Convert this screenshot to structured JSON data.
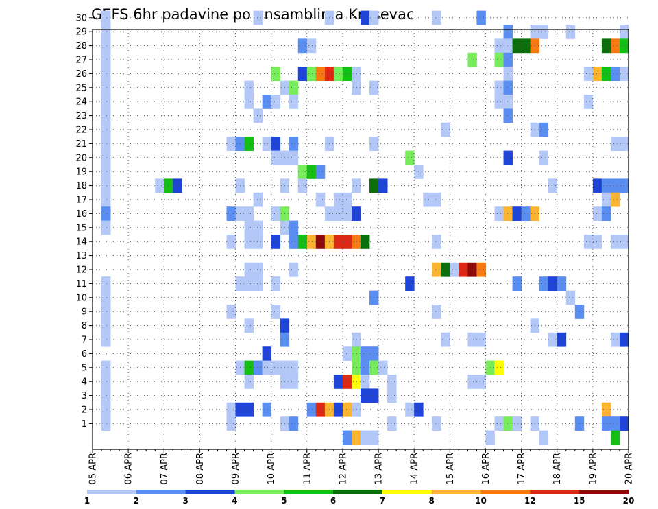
{
  "chart_data": {
    "type": "heatmap",
    "title": "GEFS 6hr padavine po ansamblima Krusevac",
    "xlabel": "",
    "ylabel": "",
    "x_ticks": [
      "05 APR",
      "06 APR",
      "07 APR",
      "08 APR",
      "09 APR",
      "10 APR",
      "11 APR",
      "12 APR",
      "13 APR",
      "14 APR",
      "15 APR",
      "16 APR",
      "17 APR",
      "18 APR",
      "19 APR",
      "20 APR"
    ],
    "x_interval": "6 hr",
    "x_range": [
      "05 APR 00Z",
      "20 APR 00Z"
    ],
    "y_ticks": [
      1,
      2,
      3,
      4,
      5,
      6,
      7,
      8,
      9,
      10,
      11,
      12,
      13,
      14,
      15,
      16,
      17,
      18,
      19,
      20,
      21,
      22,
      23,
      24,
      25,
      26,
      27,
      28,
      29,
      30
    ],
    "ylabel_meaning": "ensemble member",
    "grid": true,
    "legend_position": "bottom",
    "color_levels": [
      1,
      2,
      3,
      4,
      5,
      6,
      7,
      8,
      10,
      12,
      15,
      20
    ],
    "colors": [
      "#b4c8f8",
      "#5a8ef0",
      "#1f45d8",
      "#78ec5a",
      "#14be14",
      "#0a6e0a",
      "#ffff00",
      "#fab432",
      "#f57a14",
      "#dc2814",
      "#8c0a0a"
    ],
    "cells": [
      {
        "member": 30,
        "x": [
          "05 APR 06Z",
          "09 APR 12Z",
          "11 APR 12Z",
          "12 APR 12Z",
          "12 APR 18Z",
          "14 APR 12Z",
          "15 APR 18Z"
        ],
        "level": [
          1,
          1,
          1,
          3,
          1,
          1,
          2
        ]
      },
      {
        "member": 29,
        "x": [
          "05 APR 06Z",
          "16 APR 12Z",
          "17 APR 06Z",
          "17 APR 12Z",
          "18 APR 06Z",
          "19 APR 18Z"
        ],
        "level": [
          1,
          2,
          1,
          1,
          1,
          1
        ]
      },
      {
        "member": 28,
        "x": [
          "05 APR 06Z",
          "10 APR 18Z",
          "11 APR 00Z",
          "16 APR 06Z",
          "16 APR 12Z",
          "16 APR 18Z",
          "17 APR 00Z",
          "17 APR 06Z",
          "19 APR 06Z",
          "19 APR 12Z",
          "19 APR 18Z"
        ],
        "level": [
          1,
          2,
          1,
          1,
          1,
          6,
          6,
          9,
          6,
          9,
          5
        ]
      },
      {
        "member": 27,
        "x": [
          "05 APR 06Z",
          "15 APR 12Z",
          "16 APR 06Z",
          "16 APR 12Z"
        ],
        "level": [
          1,
          4,
          4,
          2
        ]
      },
      {
        "member": 26,
        "x": [
          "05 APR 06Z",
          "10 APR 00Z",
          "10 APR 18Z",
          "11 APR 00Z",
          "11 APR 06Z",
          "11 APR 12Z",
          "11 APR 18Z",
          "12 APR 00Z",
          "12 APR 06Z",
          "16 APR 12Z",
          "18 APR 18Z",
          "19 APR 00Z",
          "19 APR 06Z",
          "19 APR 12Z",
          "19 APR 18Z"
        ],
        "level": [
          1,
          4,
          3,
          4,
          9,
          10,
          4,
          5,
          1,
          1,
          1,
          8,
          5,
          2,
          1
        ]
      },
      {
        "member": 25,
        "x": [
          "05 APR 06Z",
          "09 APR 06Z",
          "10 APR 06Z",
          "10 APR 12Z",
          "12 APR 06Z",
          "12 APR 18Z",
          "16 APR 06Z",
          "16 APR 12Z"
        ],
        "level": [
          1,
          1,
          1,
          4,
          1,
          1,
          1,
          2
        ]
      },
      {
        "member": 24,
        "x": [
          "05 APR 06Z",
          "09 APR 06Z",
          "09 APR 18Z",
          "10 APR 00Z",
          "10 APR 12Z",
          "16 APR 06Z",
          "16 APR 12Z",
          "18 APR 18Z"
        ],
        "level": [
          1,
          1,
          2,
          1,
          1,
          1,
          1,
          1
        ]
      },
      {
        "member": 23,
        "x": [
          "05 APR 06Z",
          "09 APR 12Z",
          "16 APR 12Z"
        ],
        "level": [
          1,
          1,
          2
        ]
      },
      {
        "member": 22,
        "x": [
          "05 APR 06Z",
          "14 APR 18Z",
          "17 APR 06Z",
          "17 APR 12Z"
        ],
        "level": [
          1,
          1,
          1,
          2
        ]
      },
      {
        "member": 21,
        "x": [
          "05 APR 06Z",
          "08 APR 18Z",
          "09 APR 00Z",
          "09 APR 06Z",
          "09 APR 18Z",
          "10 APR 00Z",
          "10 APR 12Z",
          "11 APR 12Z",
          "12 APR 18Z",
          "19 APR 12Z",
          "19 APR 18Z"
        ],
        "level": [
          1,
          1,
          2,
          5,
          1,
          3,
          2,
          1,
          1,
          1,
          1
        ]
      },
      {
        "member": 20,
        "x": [
          "05 APR 06Z",
          "10 APR 00Z",
          "10 APR 06Z",
          "10 APR 12Z",
          "13 APR 18Z",
          "16 APR 12Z",
          "17 APR 12Z"
        ],
        "level": [
          1,
          1,
          1,
          1,
          4,
          3,
          1
        ]
      },
      {
        "member": 19,
        "x": [
          "05 APR 06Z",
          "10 APR 18Z",
          "11 APR 00Z",
          "11 APR 06Z",
          "14 APR 00Z"
        ],
        "level": [
          1,
          4,
          5,
          2,
          1
        ]
      },
      {
        "member": 18,
        "x": [
          "05 APR 06Z",
          "06 APR 18Z",
          "07 APR 00Z",
          "07 APR 06Z",
          "09 APR 00Z",
          "10 APR 06Z",
          "10 APR 18Z",
          "12 APR 06Z",
          "12 APR 18Z",
          "13 APR 00Z",
          "17 APR 18Z",
          "19 APR 00Z",
          "19 APR 06Z",
          "19 APR 12Z",
          "19 APR 18Z"
        ],
        "level": [
          1,
          1,
          5,
          3,
          1,
          1,
          1,
          1,
          6,
          3,
          1,
          3,
          2,
          2,
          2
        ]
      },
      {
        "member": 17,
        "x": [
          "05 APR 06Z",
          "09 APR 12Z",
          "11 APR 06Z",
          "11 APR 18Z",
          "12 APR 00Z",
          "14 APR 06Z",
          "14 APR 12Z",
          "19 APR 06Z",
          "19 APR 12Z"
        ],
        "level": [
          1,
          1,
          1,
          1,
          1,
          1,
          1,
          1,
          8
        ]
      },
      {
        "member": 16,
        "x": [
          "05 APR 06Z",
          "08 APR 18Z",
          "09 APR 00Z",
          "09 APR 06Z",
          "10 APR 00Z",
          "10 APR 06Z",
          "11 APR 12Z",
          "11 APR 18Z",
          "12 APR 00Z",
          "12 APR 06Z",
          "16 APR 06Z",
          "16 APR 12Z",
          "16 APR 18Z",
          "17 APR 00Z",
          "17 APR 06Z",
          "19 APR 00Z",
          "19 APR 06Z"
        ],
        "level": [
          2,
          2,
          1,
          1,
          1,
          4,
          1,
          1,
          1,
          3,
          1,
          8,
          3,
          2,
          8,
          1,
          2
        ]
      },
      {
        "member": 15,
        "x": [
          "05 APR 06Z",
          "09 APR 06Z",
          "09 APR 12Z",
          "10 APR 06Z",
          "10 APR 12Z"
        ],
        "level": [
          1,
          1,
          1,
          1,
          2
        ]
      },
      {
        "member": 14,
        "x": [
          "08 APR 18Z",
          "09 APR 06Z",
          "09 APR 12Z",
          "10 APR 00Z",
          "10 APR 12Z",
          "10 APR 18Z",
          "11 APR 00Z",
          "11 APR 06Z",
          "11 APR 12Z",
          "11 APR 18Z",
          "12 APR 00Z",
          "12 APR 06Z",
          "12 APR 12Z",
          "14 APR 12Z",
          "18 APR 18Z",
          "19 APR 00Z",
          "19 APR 12Z",
          "19 APR 18Z"
        ],
        "level": [
          1,
          1,
          1,
          3,
          2,
          5,
          8,
          11,
          8,
          10,
          10,
          9,
          6,
          1,
          1,
          1,
          1,
          1
        ]
      },
      {
        "member": 12,
        "x": [
          "09 APR 06Z",
          "09 APR 12Z",
          "10 APR 12Z",
          "14 APR 12Z",
          "14 APR 18Z",
          "15 APR 00Z",
          "15 APR 06Z",
          "15 APR 12Z",
          "15 APR 18Z"
        ],
        "level": [
          1,
          1,
          1,
          8,
          6,
          1,
          10,
          11,
          9
        ]
      },
      {
        "member": 11,
        "x": [
          "05 APR 06Z",
          "09 APR 00Z",
          "09 APR 06Z",
          "09 APR 12Z",
          "10 APR 00Z",
          "13 APR 18Z",
          "16 APR 18Z",
          "17 APR 12Z",
          "17 APR 18Z",
          "18 APR 00Z"
        ],
        "level": [
          1,
          1,
          1,
          1,
          1,
          3,
          2,
          2,
          3,
          2
        ]
      },
      {
        "member": 10,
        "x": [
          "05 APR 06Z",
          "12 APR 18Z",
          "18 APR 06Z"
        ],
        "level": [
          1,
          2,
          1
        ]
      },
      {
        "member": 9,
        "x": [
          "05 APR 06Z",
          "08 APR 18Z",
          "10 APR 00Z",
          "14 APR 12Z",
          "18 APR 12Z"
        ],
        "level": [
          1,
          1,
          1,
          1,
          2
        ]
      },
      {
        "member": 8,
        "x": [
          "05 APR 06Z",
          "09 APR 06Z",
          "10 APR 06Z",
          "17 APR 06Z"
        ],
        "level": [
          1,
          1,
          3,
          1
        ]
      },
      {
        "member": 7,
        "x": [
          "05 APR 06Z",
          "10 APR 06Z",
          "12 APR 06Z",
          "14 APR 18Z",
          "15 APR 12Z",
          "15 APR 18Z",
          "17 APR 18Z",
          "18 APR 00Z",
          "19 APR 12Z",
          "19 APR 18Z"
        ],
        "level": [
          1,
          2,
          1,
          1,
          1,
          1,
          1,
          3,
          1,
          3
        ]
      },
      {
        "member": 6,
        "x": [
          "09 APR 18Z",
          "12 APR 00Z",
          "12 APR 06Z",
          "12 APR 12Z",
          "12 APR 18Z"
        ],
        "level": [
          3,
          1,
          4,
          2,
          2
        ]
      },
      {
        "member": 5,
        "x": [
          "05 APR 06Z",
          "09 APR 00Z",
          "09 APR 06Z",
          "09 APR 12Z",
          "09 APR 18Z",
          "10 APR 00Z",
          "10 APR 06Z",
          "10 APR 12Z",
          "12 APR 06Z",
          "12 APR 12Z",
          "12 APR 18Z",
          "13 APR 00Z",
          "16 APR 00Z",
          "16 APR 06Z"
        ],
        "level": [
          1,
          1,
          5,
          2,
          1,
          1,
          1,
          1,
          4,
          2,
          4,
          1,
          4,
          7
        ]
      },
      {
        "member": 4,
        "x": [
          "05 APR 06Z",
          "09 APR 06Z",
          "10 APR 06Z",
          "10 APR 12Z",
          "11 APR 18Z",
          "12 APR 00Z",
          "12 APR 06Z",
          "12 APR 12Z",
          "13 APR 06Z",
          "15 APR 12Z",
          "15 APR 18Z"
        ],
        "level": [
          1,
          1,
          1,
          1,
          3,
          10,
          7,
          1,
          1,
          1,
          1
        ]
      },
      {
        "member": 3,
        "x": [
          "05 APR 06Z",
          "12 APR 12Z",
          "12 APR 18Z",
          "13 APR 06Z"
        ],
        "level": [
          1,
          3,
          3,
          1
        ]
      },
      {
        "member": 2,
        "x": [
          "05 APR 06Z",
          "08 APR 18Z",
          "09 APR 00Z",
          "09 APR 06Z",
          "09 APR 18Z",
          "11 APR 00Z",
          "11 APR 06Z",
          "11 APR 12Z",
          "11 APR 18Z",
          "12 APR 00Z",
          "12 APR 06Z",
          "13 APR 18Z",
          "14 APR 00Z",
          "19 APR 06Z"
        ],
        "level": [
          1,
          1,
          3,
          3,
          2,
          2,
          10,
          8,
          3,
          8,
          1,
          1,
          3,
          8
        ]
      },
      {
        "member": 1,
        "x": [
          "05 APR 06Z",
          "08 APR 18Z",
          "10 APR 06Z",
          "10 APR 12Z",
          "13 APR 06Z",
          "14 APR 12Z",
          "16 APR 06Z",
          "16 APR 12Z",
          "16 APR 18Z",
          "17 APR 06Z",
          "18 APR 12Z",
          "19 APR 06Z",
          "19 APR 12Z",
          "19 APR 18Z"
        ],
        "level": [
          1,
          1,
          1,
          2,
          1,
          1,
          1,
          4,
          1,
          1,
          2,
          2,
          2,
          3
        ]
      },
      {
        "member": 0,
        "x": [
          "12 APR 00Z",
          "12 APR 06Z",
          "12 APR 12Z",
          "12 APR 18Z",
          "16 APR 00Z",
          "17 APR 12Z",
          "19 APR 12Z"
        ],
        "level": [
          2,
          8,
          1,
          1,
          1,
          1,
          5
        ]
      }
    ]
  }
}
